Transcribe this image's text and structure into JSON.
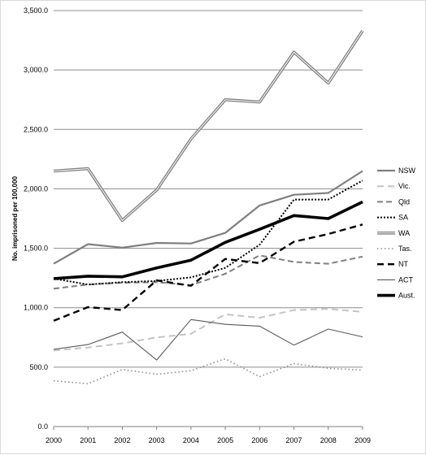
{
  "chart_data": {
    "type": "line",
    "title": "",
    "xlabel": "",
    "ylabel": "No. imprisoned per 100,000",
    "x": [
      "2000",
      "2001",
      "2002",
      "2003",
      "2004",
      "2005",
      "2006",
      "2007",
      "2008",
      "2009"
    ],
    "ylim": [
      0,
      3500
    ],
    "yticks": [
      "0.0",
      "500.0",
      "1,000.0",
      "1,500.0",
      "2,000.0",
      "2,500.0",
      "3,000.0",
      "3,500.0"
    ],
    "grid": "horizontal",
    "legend_position": "right",
    "series": [
      {
        "name": "NSW",
        "values": [
          1370,
          1535,
          1505,
          1545,
          1540,
          1630,
          1860,
          1950,
          1965,
          2150
        ]
      },
      {
        "name": "Vic.",
        "values": [
          640,
          665,
          700,
          750,
          780,
          945,
          915,
          980,
          990,
          965
        ]
      },
      {
        "name": "Qld",
        "values": [
          1160,
          1195,
          1210,
          1215,
          1190,
          1285,
          1440,
          1385,
          1370,
          1430
        ]
      },
      {
        "name": "SA",
        "values": [
          1245,
          1195,
          1215,
          1225,
          1255,
          1335,
          1530,
          1910,
          1910,
          2070
        ]
      },
      {
        "name": "WA",
        "values": [
          2150,
          2170,
          1735,
          1990,
          2420,
          2750,
          2730,
          3150,
          2890,
          3330
        ]
      },
      {
        "name": "Tas.",
        "values": [
          385,
          360,
          480,
          440,
          470,
          570,
          420,
          530,
          490,
          475
        ]
      },
      {
        "name": "NT",
        "values": [
          890,
          1005,
          980,
          1230,
          1185,
          1410,
          1375,
          1555,
          1620,
          1700
        ]
      },
      {
        "name": "ACT",
        "values": [
          650,
          690,
          795,
          560,
          900,
          860,
          845,
          685,
          820,
          755
        ]
      },
      {
        "name": "Aust.",
        "values": [
          1245,
          1265,
          1260,
          1335,
          1400,
          1550,
          1660,
          1775,
          1750,
          1890
        ]
      }
    ]
  }
}
